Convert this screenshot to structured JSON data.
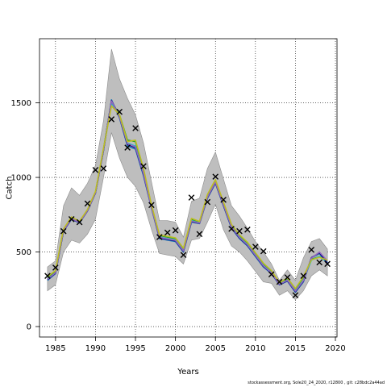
{
  "chart_data": {
    "type": "line",
    "xlabel": "Years",
    "ylabel": "Catch",
    "xlim": [
      1983,
      2020.2
    ],
    "ylim": [
      -70,
      1930
    ],
    "xticks": [
      1985,
      1990,
      1995,
      2000,
      2005,
      2010,
      2015,
      2020
    ],
    "yticks": [
      0,
      500,
      1000,
      1500
    ],
    "grid": true,
    "legend": "none",
    "x": [
      1984,
      1985,
      1986,
      1987,
      1988,
      1989,
      1990,
      1991,
      1992,
      1993,
      1994,
      1995,
      1996,
      1997,
      1998,
      1999,
      2000,
      2001,
      2002,
      2003,
      2004,
      2005,
      2006,
      2007,
      2008,
      2009,
      2010,
      2011,
      2012,
      2013,
      2014,
      2015,
      2016,
      2017,
      2018,
      2019
    ],
    "band_upper": [
      400,
      440,
      810,
      930,
      880,
      960,
      1080,
      1380,
      1860,
      1660,
      1530,
      1420,
      1230,
      970,
      710,
      710,
      700,
      600,
      840,
      860,
      1060,
      1170,
      990,
      810,
      740,
      660,
      570,
      500,
      420,
      310,
      380,
      310,
      460,
      570,
      590,
      520
    ],
    "band_lower": [
      240,
      280,
      500,
      580,
      560,
      620,
      720,
      1000,
      1300,
      1130,
      1000,
      940,
      830,
      650,
      490,
      480,
      470,
      420,
      580,
      590,
      700,
      820,
      650,
      540,
      500,
      440,
      370,
      300,
      290,
      210,
      240,
      180,
      240,
      340,
      380,
      340
    ],
    "observed_catch": [
      340,
      395,
      640,
      720,
      700,
      825,
      1050,
      1060,
      1390,
      1440,
      1200,
      1330,
      1075,
      815,
      600,
      630,
      645,
      480,
      865,
      620,
      835,
      1005,
      850,
      655,
      640,
      650,
      535,
      505,
      350,
      300,
      330,
      210,
      340,
      515,
      430,
      420
    ],
    "series": [
      {
        "color": "#2ca02c",
        "values": [
          330,
          370,
          650,
          730,
          700,
          780,
          900,
          1190,
          1510,
          1420,
          1250,
          1240,
          1050,
          810,
          610,
          600,
          590,
          520,
          720,
          700,
          880,
          980,
          830,
          680,
          610,
          560,
          490,
          420,
          370,
          290,
          320,
          250,
          330,
          450,
          470,
          440
        ]
      },
      {
        "color": "#1f77b4",
        "values": [
          310,
          355,
          640,
          720,
          695,
          775,
          895,
          1180,
          1520,
          1400,
          1210,
          1190,
          1010,
          795,
          590,
          580,
          570,
          500,
          700,
          690,
          860,
          960,
          810,
          660,
          590,
          540,
          470,
          400,
          355,
          280,
          305,
          230,
          300,
          460,
          490,
          420
        ]
      },
      {
        "color": "#17becf",
        "values": [
          320,
          360,
          645,
          725,
          700,
          778,
          898,
          1185,
          1500,
          1410,
          1230,
          1210,
          1030,
          800,
          600,
          590,
          580,
          510,
          710,
          695,
          870,
          970,
          820,
          670,
          600,
          550,
          480,
          410,
          362,
          285,
          312,
          240,
          310,
          445,
          470,
          430
        ]
      },
      {
        "color": "#000080",
        "values": [
          315,
          358,
          642,
          722,
          697,
          776,
          896,
          1182,
          1515,
          1405,
          1220,
          1200,
          1020,
          798,
          595,
          585,
          575,
          505,
          705,
          692,
          865,
          965,
          815,
          665,
          595,
          545,
          475,
          405,
          358,
          282,
          308,
          235,
          305,
          462,
          495,
          425
        ]
      },
      {
        "color": "#9467bd",
        "values": [
          318,
          360,
          644,
          724,
          698,
          777,
          897,
          1184,
          1512,
          1408,
          1225,
          1205,
          1025,
          799,
          598,
          588,
          578,
          508,
          708,
          694,
          868,
          968,
          818,
          668,
          598,
          548,
          478,
          408,
          360,
          284,
          310,
          238,
          308,
          458,
          500,
          440
        ]
      },
      {
        "color": "#bcbd22",
        "values": [
          335,
          375,
          655,
          735,
          705,
          785,
          905,
          1195,
          1480,
          1420,
          1240,
          1250,
          1060,
          815,
          615,
          605,
          595,
          525,
          725,
          705,
          885,
          985,
          835,
          685,
          615,
          565,
          495,
          425,
          375,
          295,
          325,
          255,
          335,
          448,
          465,
          445
        ]
      }
    ]
  },
  "footnote": "stockassessment.org, Sole20_24_2020, r12800 , git: c28bdc2a44ad"
}
